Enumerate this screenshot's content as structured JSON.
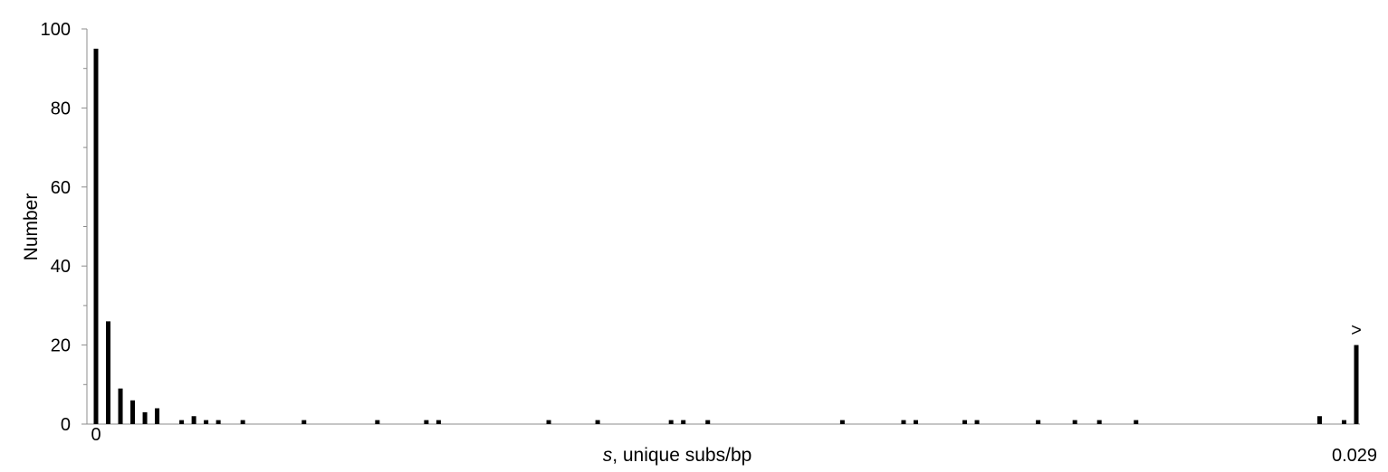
{
  "chart_data": {
    "type": "bar",
    "title": "",
    "xlabel_italic": "s",
    "xlabel_rest": ", unique subs/bp",
    "ylabel": "Number",
    "ylim": [
      0,
      100
    ],
    "yticks": [
      0,
      20,
      40,
      60,
      80,
      100
    ],
    "x_range": [
      0,
      0.029
    ],
    "x_tick_labels": [
      "0",
      "0.029"
    ],
    "overflow_marker": ">",
    "bin_width": 0.0002857,
    "bin_values": [
      95,
      26,
      9,
      6,
      3,
      4,
      0,
      1,
      2,
      1,
      1,
      0,
      1,
      0,
      0,
      0,
      0,
      1,
      0,
      0,
      0,
      0,
      0,
      1,
      0,
      0,
      0,
      1,
      1,
      0,
      0,
      0,
      0,
      0,
      0,
      0,
      0,
      1,
      0,
      0,
      0,
      1,
      0,
      0,
      0,
      0,
      0,
      1,
      1,
      0,
      1,
      0,
      0,
      0,
      0,
      0,
      0,
      0,
      0,
      0,
      0,
      1,
      0,
      0,
      0,
      0,
      1,
      1,
      0,
      0,
      0,
      1,
      1,
      0,
      0,
      0,
      0,
      1,
      0,
      0,
      1,
      0,
      1,
      0,
      0,
      1,
      0,
      0,
      0,
      0,
      0,
      0,
      0,
      0,
      0,
      0,
      0,
      0,
      0,
      0,
      2,
      0,
      1,
      20
    ],
    "grid": false,
    "legend": "none"
  }
}
